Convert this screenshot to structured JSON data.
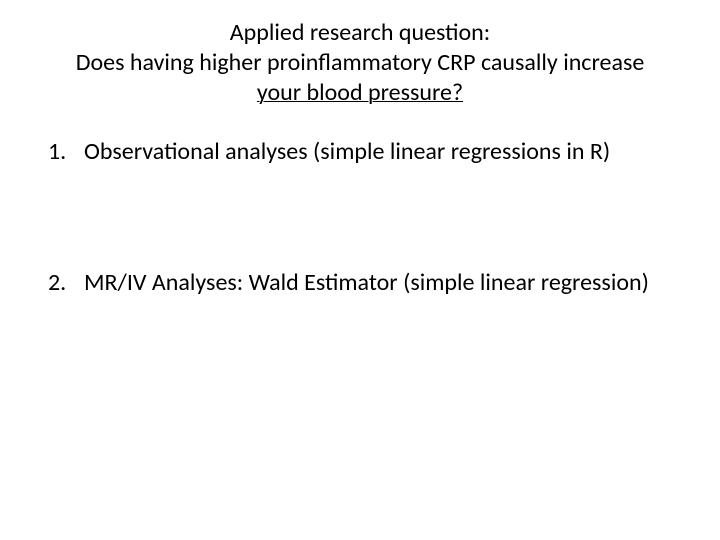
{
  "slide": {
    "background_color": "#ffffff",
    "text_color": "#000000",
    "font_family": "Calibri",
    "title": {
      "line1": "Applied research question:",
      "line2": "Does having higher proinflammatory CRP causally increase",
      "line3_underlined": "your blood pressure?",
      "fontsize": 24,
      "align": "center"
    },
    "list": {
      "fontsize": 24,
      "items": [
        {
          "number": "1.",
          "text": "Observational analyses (simple linear regressions in R)"
        },
        {
          "number": "2.",
          "text": "MR/IV Analyses: Wald Estimator (simple linear regression)"
        }
      ]
    }
  }
}
